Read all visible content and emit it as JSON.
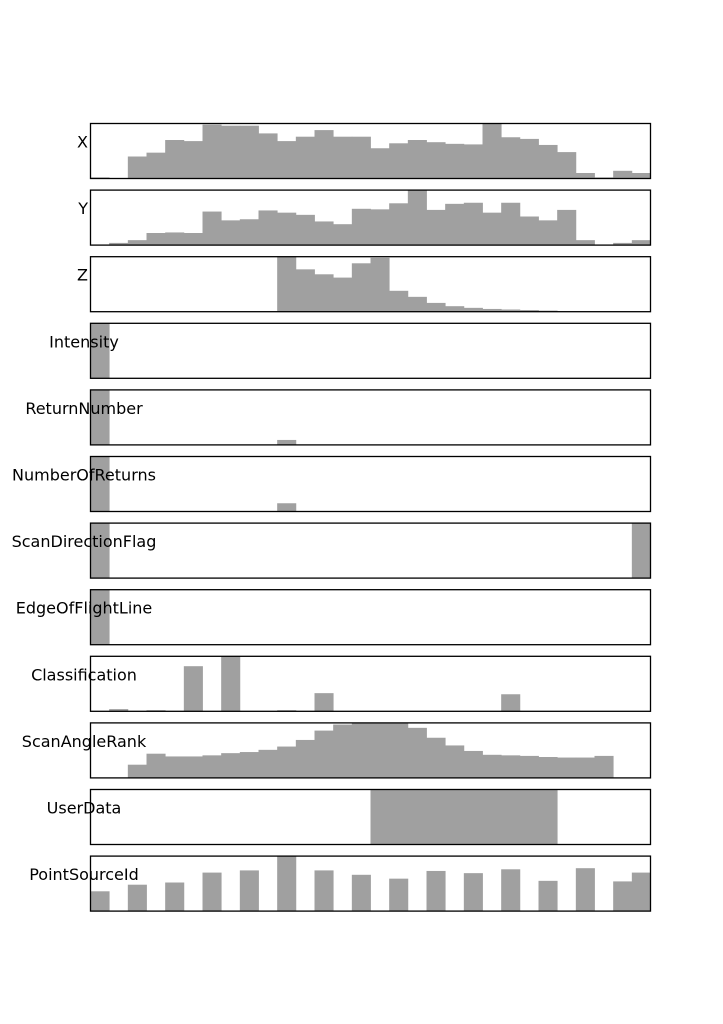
{
  "figure": {
    "bar_color": "#a0a0a0",
    "frame_color": "#000000",
    "background": "#ffffff"
  },
  "chart_data": [
    {
      "type": "bar",
      "label": "X",
      "ylim": [
        0,
        1
      ],
      "values": [
        0.02,
        0,
        0.4,
        0.47,
        0.7,
        0.68,
        0.98,
        0.96,
        0.96,
        0.82,
        0.68,
        0.76,
        0.88,
        0.76,
        0.76,
        0.55,
        0.64,
        0.7,
        0.66,
        0.63,
        0.62,
        1.0,
        0.75,
        0.72,
        0.61,
        0.48,
        0.1,
        0.02,
        0.14,
        0.1
      ]
    },
    {
      "type": "bar",
      "label": "Y",
      "ylim": [
        0,
        1
      ],
      "values": [
        0,
        0.04,
        0.09,
        0.22,
        0.23,
        0.22,
        0.61,
        0.45,
        0.47,
        0.63,
        0.59,
        0.55,
        0.43,
        0.38,
        0.66,
        0.65,
        0.76,
        1.0,
        0.64,
        0.75,
        0.77,
        0.59,
        0.77,
        0.52,
        0.45,
        0.64,
        0.09,
        0,
        0.04,
        0.09
      ]
    },
    {
      "type": "bar",
      "label": "Z",
      "ylim": [
        0,
        1
      ],
      "values": [
        0,
        0,
        0,
        0,
        0,
        0,
        0,
        0,
        0,
        0,
        1.0,
        0.77,
        0.68,
        0.62,
        0.88,
        0.98,
        0.38,
        0.27,
        0.16,
        0.1,
        0.07,
        0.05,
        0.04,
        0.03,
        0.02,
        0,
        0,
        0,
        0,
        0
      ]
    },
    {
      "type": "bar",
      "label": "Intensity",
      "ylim": [
        0,
        1
      ],
      "values": [
        1.0,
        0,
        0,
        0,
        0,
        0,
        0,
        0,
        0,
        0,
        0,
        0,
        0,
        0,
        0,
        0,
        0,
        0,
        0,
        0,
        0,
        0,
        0,
        0,
        0,
        0,
        0,
        0,
        0,
        0
      ]
    },
    {
      "type": "bar",
      "label": "ReturnNumber",
      "ylim": [
        0,
        1
      ],
      "values": [
        1.0,
        0,
        0,
        0,
        0,
        0,
        0,
        0,
        0,
        0,
        0.09,
        0,
        0,
        0,
        0,
        0,
        0,
        0,
        0,
        0,
        0,
        0,
        0,
        0,
        0,
        0,
        0,
        0,
        0,
        0
      ]
    },
    {
      "type": "bar",
      "label": "NumberOfReturns",
      "ylim": [
        0,
        1
      ],
      "values": [
        1.0,
        0,
        0,
        0,
        0,
        0,
        0,
        0,
        0,
        0,
        0.15,
        0,
        0,
        0,
        0,
        0,
        0,
        0,
        0,
        0,
        0,
        0,
        0,
        0,
        0,
        0,
        0,
        0,
        0,
        0
      ]
    },
    {
      "type": "bar",
      "label": "ScanDirectionFlag",
      "ylim": [
        0,
        1
      ],
      "values": [
        1.0,
        0,
        0,
        0,
        0,
        0,
        0,
        0,
        0,
        0,
        0,
        0,
        0,
        0,
        0,
        0,
        0,
        0,
        0,
        0,
        0,
        0,
        0,
        0,
        0,
        0,
        0,
        0,
        0,
        1.0
      ]
    },
    {
      "type": "bar",
      "label": "EdgeOfFlightLine",
      "ylim": [
        0,
        1
      ],
      "values": [
        1.0,
        0,
        0,
        0,
        0,
        0,
        0,
        0,
        0,
        0,
        0,
        0,
        0,
        0,
        0,
        0,
        0,
        0,
        0,
        0,
        0,
        0,
        0,
        0,
        0,
        0,
        0,
        0,
        0,
        0
      ]
    },
    {
      "type": "bar",
      "label": "Classification",
      "ylim": [
        0,
        1
      ],
      "values": [
        0,
        0.04,
        0,
        0.02,
        0,
        0.82,
        0,
        1.0,
        0,
        0,
        0.02,
        0,
        0.33,
        0,
        0,
        0,
        0,
        0,
        0,
        0,
        0,
        0,
        0.31,
        0,
        0,
        0,
        0,
        0,
        0,
        0
      ]
    },
    {
      "type": "bar",
      "label": "ScanAngleRank",
      "ylim": [
        0,
        1
      ],
      "values": [
        0,
        0,
        0.24,
        0.44,
        0.39,
        0.39,
        0.41,
        0.45,
        0.47,
        0.51,
        0.57,
        0.69,
        0.86,
        0.97,
        1.0,
        1.0,
        1.0,
        0.91,
        0.73,
        0.59,
        0.49,
        0.42,
        0.41,
        0.4,
        0.38,
        0.37,
        0.37,
        0.4,
        0,
        0
      ]
    },
    {
      "type": "bar",
      "label": "UserData",
      "ylim": [
        0,
        1
      ],
      "values": [
        0,
        0,
        0,
        0,
        0,
        0,
        0,
        0,
        0,
        0,
        0,
        0,
        0,
        0,
        0,
        1.0,
        1.0,
        1.0,
        1.0,
        1.0,
        1.0,
        1.0,
        1.0,
        1.0,
        1.0,
        0,
        0,
        0,
        0,
        0
      ]
    },
    {
      "type": "bar",
      "label": "PointSourceId",
      "ylim": [
        0,
        1
      ],
      "values": [
        0.36,
        0,
        0.48,
        0,
        0.52,
        0,
        0.7,
        0,
        0.74,
        0,
        1.0,
        0,
        0.74,
        0,
        0.66,
        0,
        0.59,
        0,
        0.73,
        0,
        0.69,
        0,
        0.76,
        0,
        0.55,
        0,
        0.78,
        0,
        0.54,
        0.7
      ]
    }
  ]
}
